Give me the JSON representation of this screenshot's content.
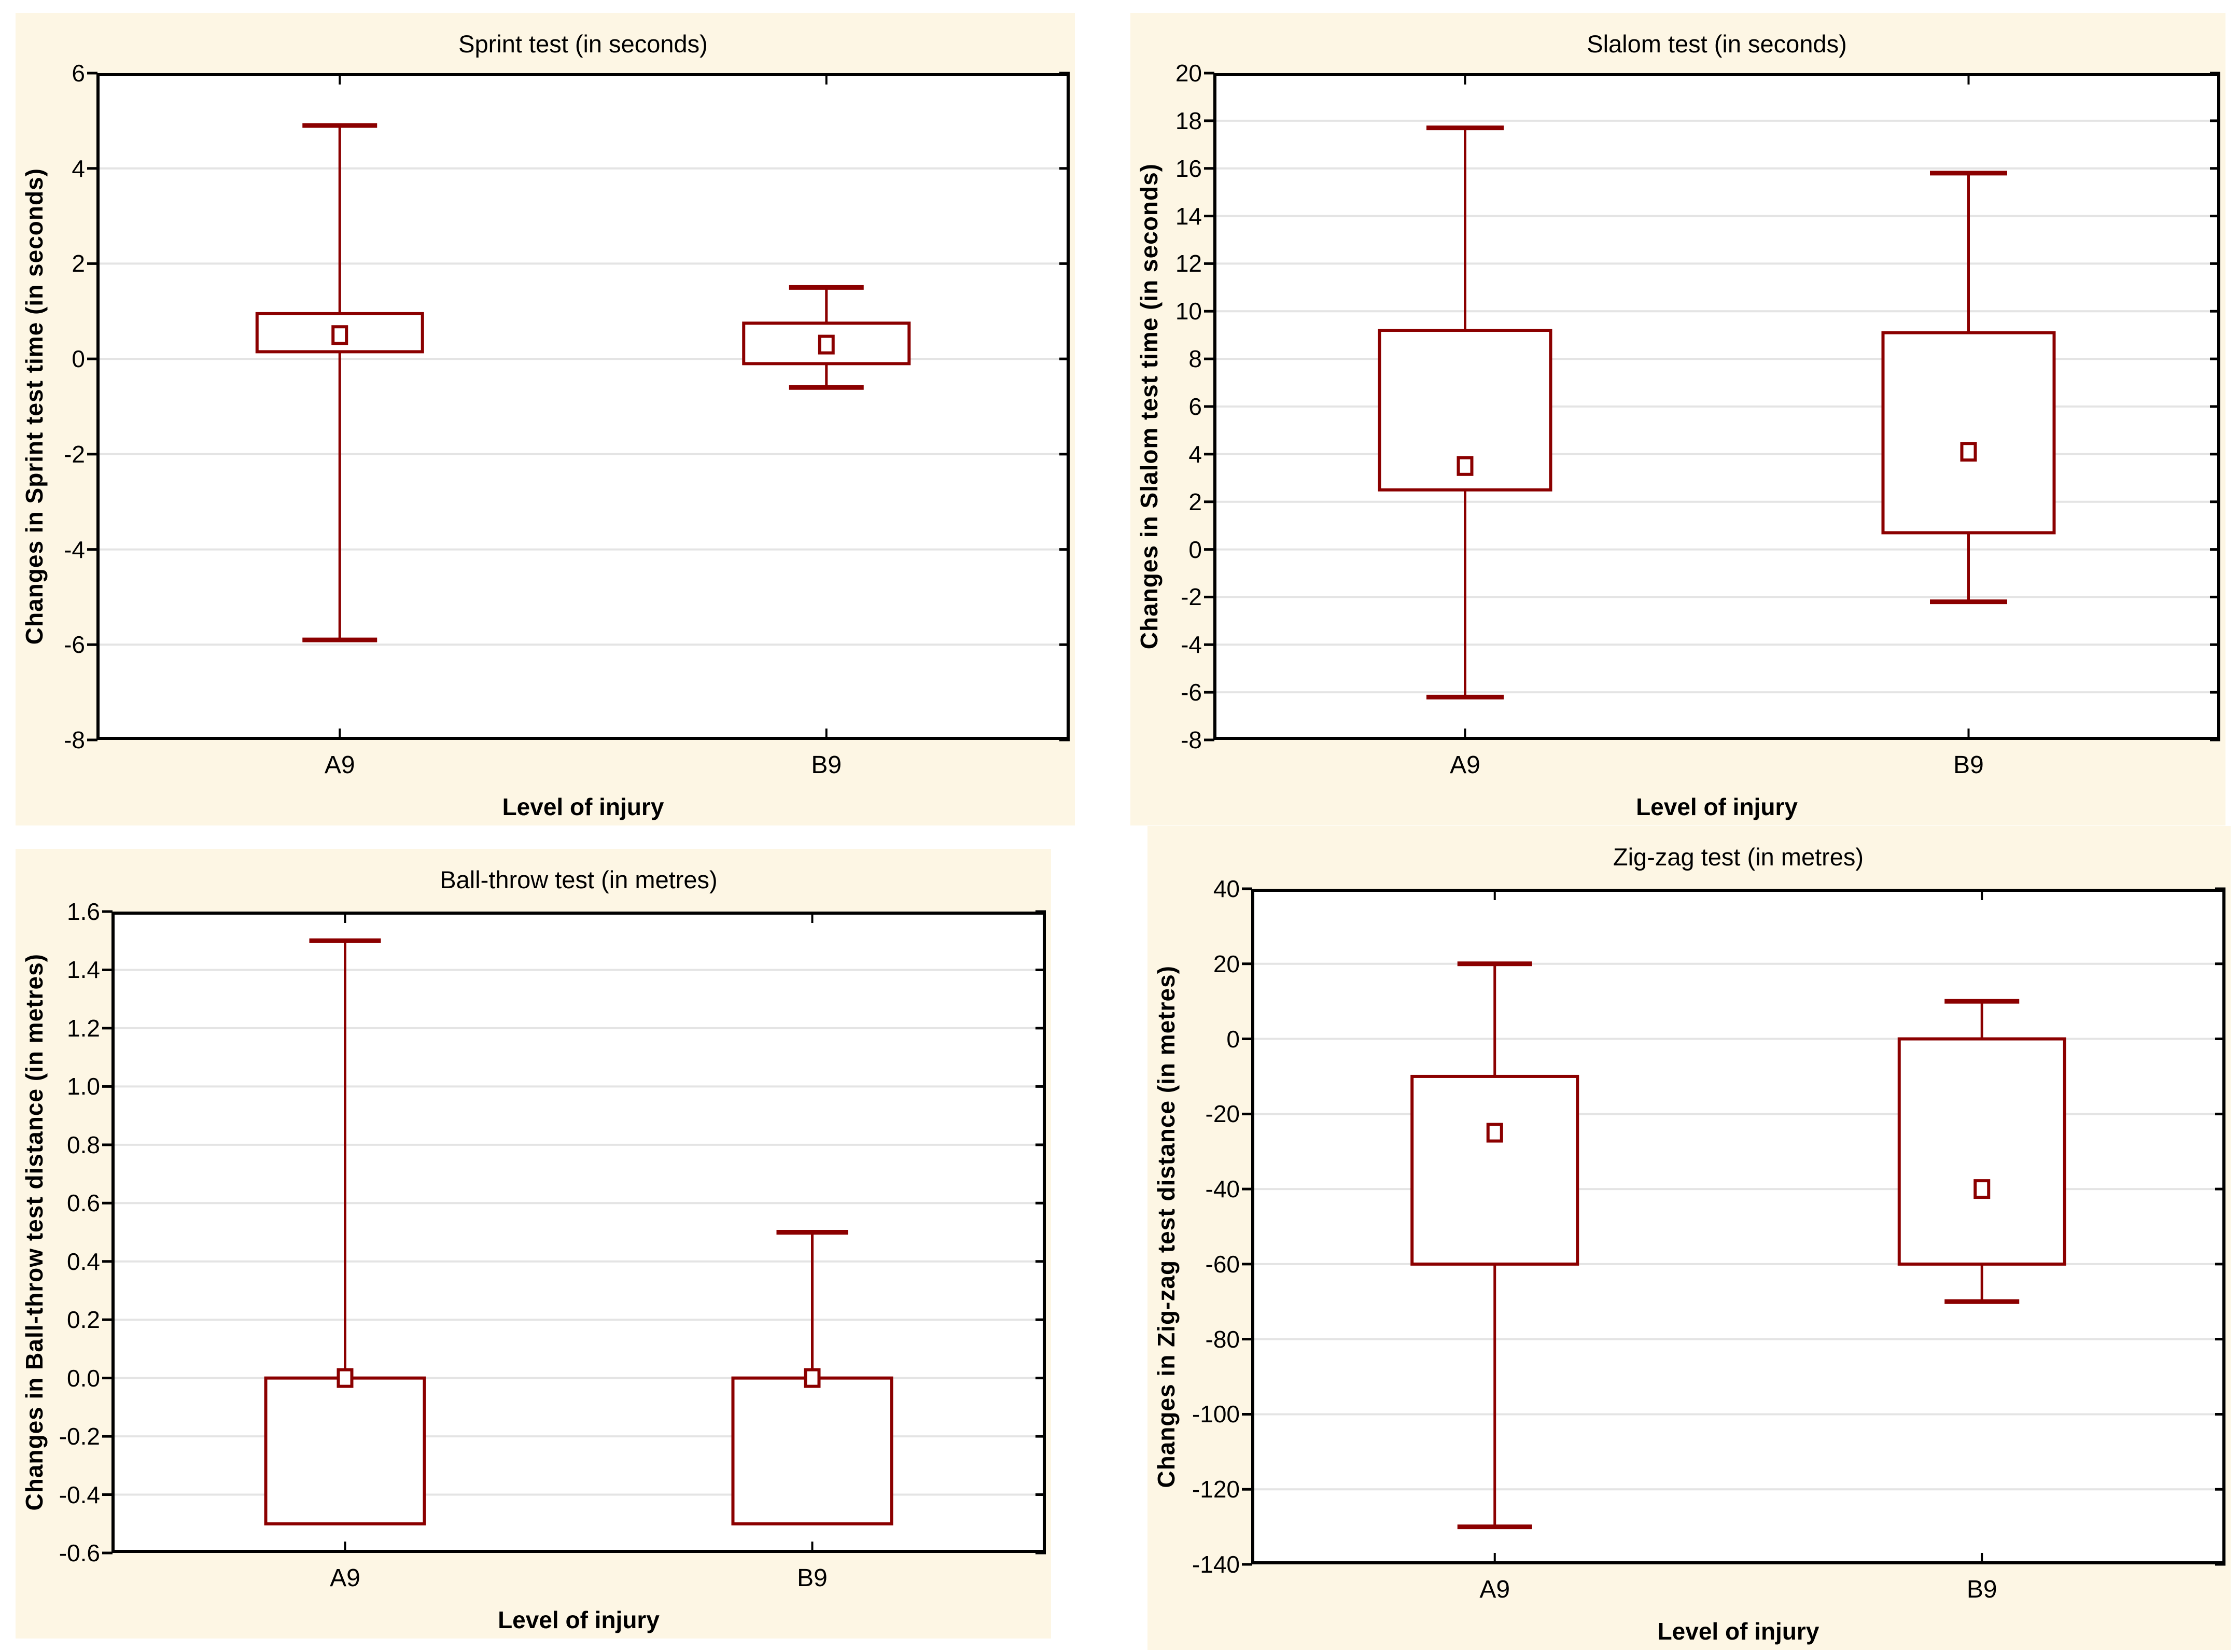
{
  "colors": {
    "panel_bg": "#fdf6e4",
    "plot_bg": "#ffffff",
    "box_color": "#8b0000",
    "grid_color": "#e4e4e4",
    "axis_color": "#000000",
    "text_color": "#000000"
  },
  "chart_data": [
    {
      "id": "sprint",
      "type": "box",
      "title": "Sprint test (in seconds)",
      "xlabel": "Level of injury",
      "ylabel": "Changes in Sprint test time (in seconds)",
      "categories": [
        "A9",
        "B9"
      ],
      "ylim": [
        -8,
        6
      ],
      "grid": true,
      "ytick_values": [
        6,
        4,
        2,
        0,
        -2,
        -4,
        -6,
        -8
      ],
      "ytick_labels": [
        "6",
        "4",
        "2",
        "0",
        "-2",
        "-4",
        "-6",
        "-8"
      ],
      "boxes": [
        {
          "category": "A9",
          "whisker_low": -5.9,
          "q1": 0.15,
          "median": 0.5,
          "q3": 0.95,
          "whisker_high": 4.9
        },
        {
          "category": "B9",
          "whisker_low": -0.6,
          "q1": -0.1,
          "median": 0.3,
          "q3": 0.75,
          "whisker_high": 1.5
        }
      ]
    },
    {
      "id": "slalom",
      "type": "box",
      "title": "Slalom test (in seconds)",
      "xlabel": "Level of injury",
      "ylabel": "Changes in Slalom test time (in seconds)",
      "categories": [
        "A9",
        "B9"
      ],
      "ylim": [
        -8,
        20
      ],
      "grid": true,
      "ytick_values": [
        20,
        18,
        16,
        14,
        12,
        10,
        8,
        6,
        4,
        2,
        0,
        -2,
        -4,
        -6,
        -8
      ],
      "ytick_labels": [
        "20",
        "18",
        "16",
        "14",
        "12",
        "10",
        "8",
        "6",
        "4",
        "2",
        "0",
        "-2",
        "-4",
        "-6",
        "-8"
      ],
      "boxes": [
        {
          "category": "A9",
          "whisker_low": -6.2,
          "q1": 2.5,
          "median": 3.5,
          "q3": 9.2,
          "whisker_high": 17.7
        },
        {
          "category": "B9",
          "whisker_low": -2.2,
          "q1": 0.7,
          "median": 4.1,
          "q3": 9.1,
          "whisker_high": 15.8
        }
      ]
    },
    {
      "id": "ball",
      "type": "box",
      "title": "Ball-throw test (in metres)",
      "xlabel": "Level of injury",
      "ylabel": "Changes in Ball-throw test distance (in metres)",
      "categories": [
        "A9",
        "B9"
      ],
      "ylim": [
        -0.6,
        1.6
      ],
      "grid": true,
      "ytick_values": [
        1.6,
        1.4,
        1.2,
        1.0,
        0.8,
        0.6,
        0.4,
        0.2,
        0.0,
        -0.2,
        -0.4,
        -0.6
      ],
      "ytick_labels": [
        "1.6",
        "1.4",
        "1.2",
        "1.0",
        "0.8",
        "0.6",
        "0.4",
        "0.2",
        "0.0",
        "-0.2",
        "-0.4",
        "-0.6"
      ],
      "boxes": [
        {
          "category": "A9",
          "whisker_low": null,
          "q1": -0.5,
          "median": 0.0,
          "q3": 0.0,
          "whisker_high": 1.5
        },
        {
          "category": "B9",
          "whisker_low": null,
          "q1": -0.5,
          "median": 0.0,
          "q3": 0.0,
          "whisker_high": 0.5
        }
      ]
    },
    {
      "id": "zigzag",
      "type": "box",
      "title": "Zig-zag test (in metres)",
      "xlabel": "Level of injury",
      "ylabel": "Changes in Zig-zag test distance (in metres)",
      "categories": [
        "A9",
        "B9"
      ],
      "ylim": [
        -140,
        40
      ],
      "grid": true,
      "ytick_values": [
        40,
        20,
        0,
        -20,
        -40,
        -60,
        -80,
        -100,
        -120,
        -140
      ],
      "ytick_labels": [
        "40",
        "20",
        "0",
        "-20",
        "-40",
        "-60",
        "-80",
        "-100",
        "-120",
        "-140"
      ],
      "boxes": [
        {
          "category": "A9",
          "whisker_low": -130,
          "q1": -60,
          "median": -25,
          "q3": -10,
          "whisker_high": 20
        },
        {
          "category": "B9",
          "whisker_low": -70,
          "q1": -60,
          "median": -40,
          "q3": 0,
          "whisker_high": 10
        }
      ]
    }
  ]
}
